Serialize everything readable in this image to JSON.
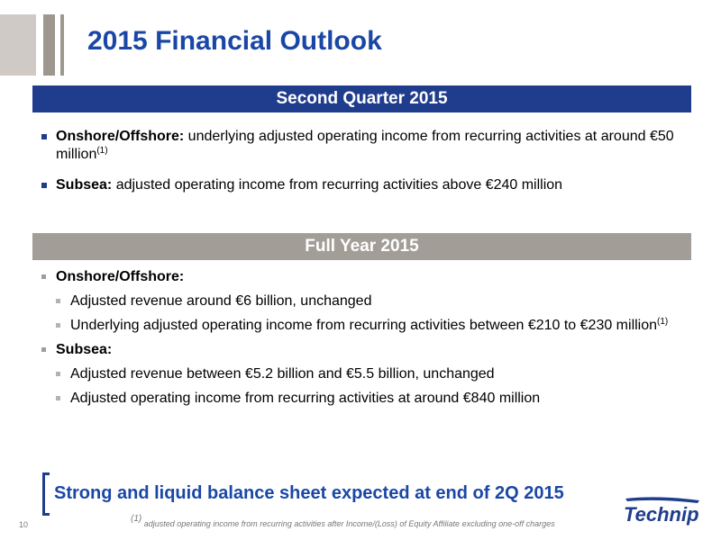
{
  "title": "2015 Financial Outlook",
  "q2": {
    "heading": "Second Quarter 2015",
    "items": [
      {
        "label": "Onshore/Offshore:",
        "text": " underlying adjusted operating income from recurring activities at around €50 million",
        "note": "(1)"
      },
      {
        "label": "Subsea:",
        "text": " adjusted operating income from recurring activities above €240 million"
      }
    ]
  },
  "fy": {
    "heading": "Full Year 2015",
    "onshore": {
      "label": "Onshore/Offshore:",
      "items": [
        {
          "text": "Adjusted revenue around €6 billion, unchanged"
        },
        {
          "text": "Underlying adjusted operating income from recurring activities between €210 to €230 million",
          "note": "(1)"
        }
      ]
    },
    "subsea": {
      "label": "Subsea:",
      "items": [
        {
          "text": "Adjusted revenue between €5.2 billion and €5.5 billion, unchanged"
        },
        {
          "text": "Adjusted operating income from recurring activities at around €840 million"
        }
      ]
    }
  },
  "callout": "Strong and liquid balance sheet expected at end of 2Q 2015",
  "page_number": "10",
  "footnote": {
    "marker": "(1)",
    "text": " adjusted operating income from recurring activities after Income/(Loss) of Equity Affiliate excluding one-off charges"
  },
  "logo_text": "Technip",
  "colors": {
    "brand_blue": "#1f3d8c",
    "title_blue": "#1a47a6",
    "band_grey": "#a29d97"
  }
}
